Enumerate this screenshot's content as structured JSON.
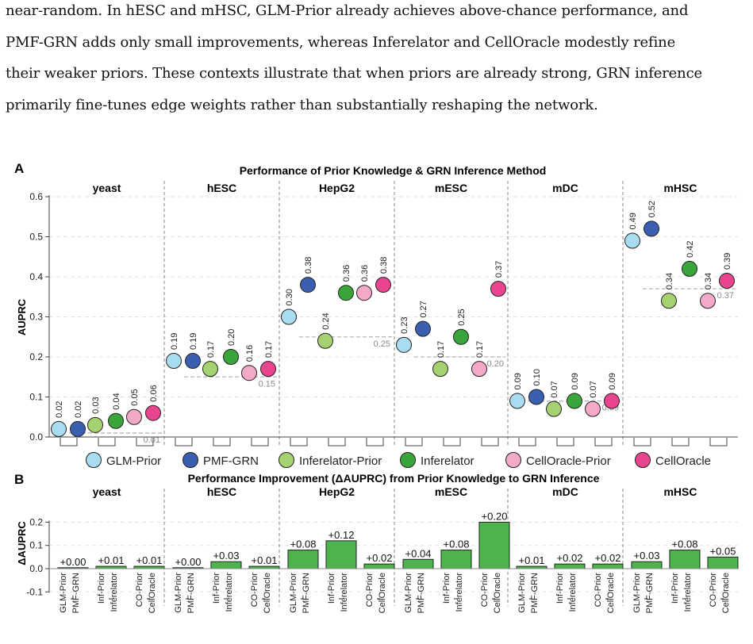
{
  "paragraph": {
    "lines": [
      "near-random. In hESC and mHSC, GLM-Prior already achieves above-chance performance, and",
      "PMF-GRN adds only small improvements, whereas Inferelator and CellOracle modestly refine",
      "their weaker priors. These contexts illustrate that when priors are already strong, GRN inference",
      "primarily fine-tunes edge weights rather than substantially reshaping the network."
    ]
  },
  "colors": {
    "GLM-Prior": "#a8dcf0",
    "PMF-GRN": "#3b5fb0",
    "Inferelator-Prior": "#a6d171",
    "Inferelator": "#3aa53a",
    "CellOracle-Prior": "#f4a9c8",
    "CellOracle": "#e8458e",
    "improvement_bar": "#4db34d"
  },
  "chart_data": [
    {
      "type": "scatter",
      "panel_label": "A",
      "title": "Performance of Prior Knowledge & GRN Inference Method",
      "ylabel": "AUPRC",
      "ylim": [
        0,
        0.6
      ],
      "yticks": [
        "0.0",
        "0.1",
        "0.2",
        "0.3",
        "0.4",
        "0.5",
        "0.6"
      ],
      "grid": true,
      "legend_position": "bottom",
      "legend": [
        "GLM-Prior",
        "PMF-GRN",
        "Inferelator-Prior",
        "Inferelator",
        "CellOracle-Prior",
        "CellOracle"
      ],
      "groups": [
        {
          "name": "yeast",
          "values": [
            0.02,
            0.02,
            0.03,
            0.04,
            0.05,
            0.06
          ],
          "labels": [
            "0.02",
            "0.02",
            "0.03",
            "0.04",
            "0.05",
            "0.06"
          ],
          "baseline": 0.01,
          "baseline_label": "0.01"
        },
        {
          "name": "hESC",
          "values": [
            0.19,
            0.19,
            0.17,
            0.2,
            0.16,
            0.17
          ],
          "labels": [
            "0.19",
            "0.19",
            "0.17",
            "0.20",
            "0.16",
            "0.17"
          ],
          "baseline": 0.15,
          "baseline_label": "0.15"
        },
        {
          "name": "HepG2",
          "values": [
            0.3,
            0.38,
            0.24,
            0.36,
            0.36,
            0.38
          ],
          "labels": [
            "0.30",
            "0.38",
            "0.24",
            "0.36",
            "0.36",
            "0.38"
          ],
          "baseline": 0.25,
          "baseline_label": "0.25"
        },
        {
          "name": "mESC",
          "values": [
            0.23,
            0.27,
            0.17,
            0.25,
            0.17,
            0.37
          ],
          "labels": [
            "0.23",
            "0.27",
            "0.17",
            "0.25",
            "0.17",
            "0.37"
          ],
          "baseline": 0.2,
          "baseline_label": "0.20"
        },
        {
          "name": "mDC",
          "values": [
            0.09,
            0.1,
            0.07,
            0.09,
            0.07,
            0.09
          ],
          "labels": [
            "0.09",
            "0.10",
            "0.07",
            "0.09",
            "0.07",
            "0.09"
          ],
          "baseline": 0.09,
          "baseline_label": "0.09"
        },
        {
          "name": "mHSC",
          "values": [
            0.49,
            0.52,
            0.34,
            0.42,
            0.34,
            0.39
          ],
          "labels": [
            "0.49",
            "0.52",
            "0.34",
            "0.42",
            "0.34",
            "0.39"
          ],
          "baseline": 0.37,
          "baseline_label": "0.37"
        }
      ]
    },
    {
      "type": "bar",
      "panel_label": "B",
      "title": "Performance Improvement (ΔAUPRC) from Prior Knowledge to GRN Inference",
      "ylabel": "ΔAUPRC",
      "ylim": [
        -0.1,
        0.2
      ],
      "yticks": [
        "-0.1",
        "0.0",
        "0.1",
        "0.2"
      ],
      "grid": true,
      "pair_labels": [
        [
          "GLM-Prior",
          "PMF-GRN"
        ],
        [
          "Inf-Prior",
          "Inferelator"
        ],
        [
          "CO-Prior",
          "CellOracle"
        ]
      ],
      "groups": [
        {
          "name": "yeast",
          "values": [
            0.0,
            0.01,
            0.01
          ],
          "labels": [
            "+0.00",
            "+0.01",
            "+0.01"
          ]
        },
        {
          "name": "hESC",
          "values": [
            0.0,
            0.03,
            0.01
          ],
          "labels": [
            "+0.00",
            "+0.03",
            "+0.01"
          ]
        },
        {
          "name": "HepG2",
          "values": [
            0.08,
            0.12,
            0.02
          ],
          "labels": [
            "+0.08",
            "+0.12",
            "+0.02"
          ]
        },
        {
          "name": "mESC",
          "values": [
            0.04,
            0.08,
            0.2
          ],
          "labels": [
            "+0.04",
            "+0.08",
            "+0.20"
          ]
        },
        {
          "name": "mDC",
          "values": [
            0.01,
            0.02,
            0.02
          ],
          "labels": [
            "+0.01",
            "+0.02",
            "+0.02"
          ]
        },
        {
          "name": "mHSC",
          "values": [
            0.03,
            0.08,
            0.05
          ],
          "labels": [
            "+0.03",
            "+0.08",
            "+0.05"
          ]
        }
      ]
    }
  ]
}
